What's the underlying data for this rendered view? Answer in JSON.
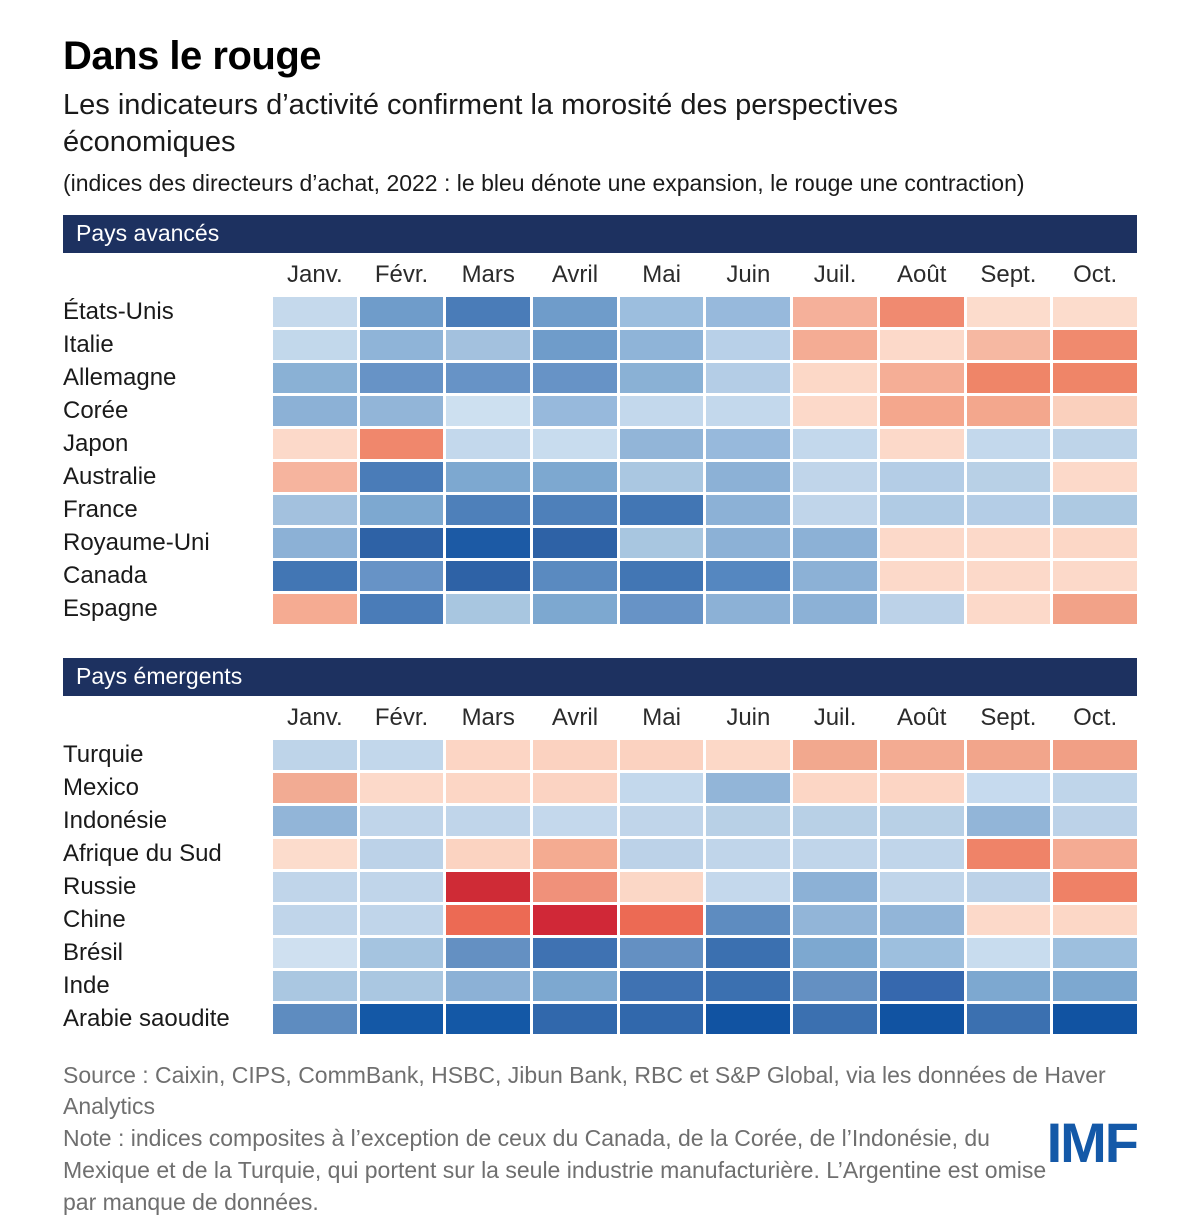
{
  "header": {
    "title": "Dans le rouge",
    "subtitle": "Les indicateurs d’activité confirment la morosité des perspectives économiques",
    "paren_note": "(indices des directeurs d’achat, 2022 : le bleu dénote une expansion, le rouge une contraction)"
  },
  "colors": {
    "band_bg": "#1d3160",
    "band_text": "#ffffff",
    "logo_blue": "#1459a8",
    "expansion_hint": "#1153a2",
    "contraction_hint": "#d02837"
  },
  "chart_data": {
    "type": "heatmap",
    "title": "Dans le rouge",
    "subtitle": "Les indicateurs d’activité confirment la morosité des perspectives économiques",
    "unit": "indices des directeurs d’achat (PMI), 2022",
    "color_encoding": "bleu = expansion, rouge = contraction",
    "grid": "off",
    "columns": [
      "Janv.",
      "Févr.",
      "Mars",
      "Avril",
      "Mai",
      "Juin",
      "Juil.",
      "Août",
      "Sept.",
      "Oct."
    ],
    "panels": [
      {
        "label": "Pays avancés",
        "rows": [
          {
            "label": "États-Unis",
            "cell_colors": [
              "#c5d9ec",
              "#6f9cca",
              "#4a7cb8",
              "#6f9cca",
              "#9cbede",
              "#97b9dc",
              "#f5b09a",
              "#f08a70",
              "#fcdccc",
              "#fcdccc"
            ]
          },
          {
            "label": "Italie",
            "cell_colors": [
              "#c2d8eb",
              "#8fb4d8",
              "#a3c1de",
              "#6f9cca",
              "#8fb4d8",
              "#b8d0e8",
              "#f4ac94",
              "#fcd9c9",
              "#f6b8a2",
              "#f08a6e"
            ]
          },
          {
            "label": "Allemagne",
            "cell_colors": [
              "#8ab1d5",
              "#6793c6",
              "#6793c6",
              "#6793c6",
              "#8ab1d5",
              "#b4cde6",
              "#fcd8c7",
              "#f5ae96",
              "#ef8568",
              "#ef8568"
            ]
          },
          {
            "label": "Corée",
            "cell_colors": [
              "#8cb1d6",
              "#92b5d8",
              "#cde0f0",
              "#97b9dc",
              "#c3d8ec",
              "#c3d8ec",
              "#fcd9c9",
              "#f4a78d",
              "#f3a78d",
              "#fad0bd"
            ]
          },
          {
            "label": "Japon",
            "cell_colors": [
              "#fcd9c9",
              "#f0876c",
              "#c3d8ec",
              "#c8dcee",
              "#92b5d8",
              "#97b9dc",
              "#c3d8ec",
              "#fcd9c9",
              "#c3d8ec",
              "#bed4e9"
            ]
          },
          {
            "label": "Australie",
            "cell_colors": [
              "#f6b49e",
              "#4a7cb8",
              "#7da8d0",
              "#7da8d0",
              "#aac7e1",
              "#8cb1d6",
              "#c0d5ea",
              "#b4cde6",
              "#b8d0e6",
              "#fcd9c9"
            ]
          },
          {
            "label": "France",
            "cell_colors": [
              "#a3c1de",
              "#7da8d0",
              "#4e80ba",
              "#4e80ba",
              "#4276b4",
              "#8cb1d6",
              "#c0d5ea",
              "#b0cbe4",
              "#b4cde6",
              "#adc9e2"
            ]
          },
          {
            "label": "Royaume-Uni",
            "cell_colors": [
              "#8cb1d6",
              "#2e62a6",
              "#1c5aa5",
              "#2e62a6",
              "#a8c6e0",
              "#8cb1d6",
              "#8cb1d6",
              "#fcd9c9",
              "#fcd9c9",
              "#fcd7c6"
            ]
          },
          {
            "label": "Canada",
            "cell_colors": [
              "#4276b4",
              "#6793c6",
              "#2e62a6",
              "#5a8ac0",
              "#4276b4",
              "#5587c0",
              "#8cb1d6",
              "#fcd9c9",
              "#fcd9c9",
              "#fcd9c9"
            ]
          },
          {
            "label": "Espagne",
            "cell_colors": [
              "#f5ab92",
              "#4a7cb8",
              "#a8c6e0",
              "#7da8d0",
              "#6793c6",
              "#8cb1d6",
              "#8cb1d6",
              "#bcd2e8",
              "#fcd9c9",
              "#f2a288"
            ]
          }
        ]
      },
      {
        "label": "Pays émergents",
        "rows": [
          {
            "label": "Turquie",
            "cell_colors": [
              "#bed4e9",
              "#c2d7eb",
              "#fcd5c4",
              "#fbd2c0",
              "#fbd2c0",
              "#fcd8c7",
              "#f2a88e",
              "#f3ab92",
              "#f2a58b",
              "#f19f85"
            ]
          },
          {
            "label": "Mexico",
            "cell_colors": [
              "#f2ab93",
              "#fcd9c9",
              "#fcd6c5",
              "#fbd3c2",
              "#c3d8ec",
              "#92b5d8",
              "#fcd6c5",
              "#fcd5c4",
              "#c6daee",
              "#bfd5ea"
            ]
          },
          {
            "label": "Indonésie",
            "cell_colors": [
              "#92b5d8",
              "#c0d5ea",
              "#c0d5ea",
              "#c4d8ec",
              "#c0d5ea",
              "#b8d0e6",
              "#b8d0e6",
              "#b8d0e6",
              "#92b5d8",
              "#bcd2e8"
            ]
          },
          {
            "label": "Afrique du Sud",
            "cell_colors": [
              "#fcdccc",
              "#bcd2e8",
              "#fbd3c1",
              "#f4ab91",
              "#bcd2e8",
              "#c0d5ea",
              "#c0d5ea",
              "#c0d5ea",
              "#ef8368",
              "#f4ab93"
            ]
          },
          {
            "label": "Russie",
            "cell_colors": [
              "#c0d5ea",
              "#c0d5ea",
              "#cf2b36",
              "#f0917a",
              "#fbd7c6",
              "#c4d8ec",
              "#8cb1d6",
              "#c0d5ea",
              "#bcd2e8",
              "#ef8166"
            ]
          },
          {
            "label": "Chine",
            "cell_colors": [
              "#c0d5ea",
              "#c0d5ea",
              "#ec6a54",
              "#d02837",
              "#ec6a54",
              "#5e8cc0",
              "#92b5d8",
              "#92b5d8",
              "#fcd9c9",
              "#fcd7c6"
            ]
          },
          {
            "label": "Brésil",
            "cell_colors": [
              "#cfe0f0",
              "#a5c4e0",
              "#6490c2",
              "#3f72b2",
              "#6490c2",
              "#3b70b0",
              "#7da8d0",
              "#9dbfde",
              "#c8dcee",
              "#9dbfde"
            ]
          },
          {
            "label": "Inde",
            "cell_colors": [
              "#aac7e1",
              "#aac7e1",
              "#8cb1d6",
              "#7da8d0",
              "#3f72b2",
              "#3b70b0",
              "#6490c2",
              "#3668ae",
              "#7da8d0",
              "#7da8d0"
            ]
          },
          {
            "label": "Arabie saoudite",
            "cell_colors": [
              "#5e8cc0",
              "#1458a6",
              "#1458a6",
              "#3168ac",
              "#3168ac",
              "#1153a2",
              "#3b70b0",
              "#1153a2",
              "#3b70b0",
              "#1153a2"
            ]
          }
        ]
      }
    ]
  },
  "footer": {
    "source_line": "Source : Caixin, CIPS, CommBank, HSBC, Jibun Bank, RBC et S&P Global, via les données de Haver Analytics",
    "note_text": "Note : indices composites à l’exception de ceux du Canada, de la Corée, de l’Indonésie, du Mexique et de la Turquie, qui portent sur la seule industrie manufacturière. L’Argentine est omise par manque de données.",
    "logo_text": "IMF"
  }
}
